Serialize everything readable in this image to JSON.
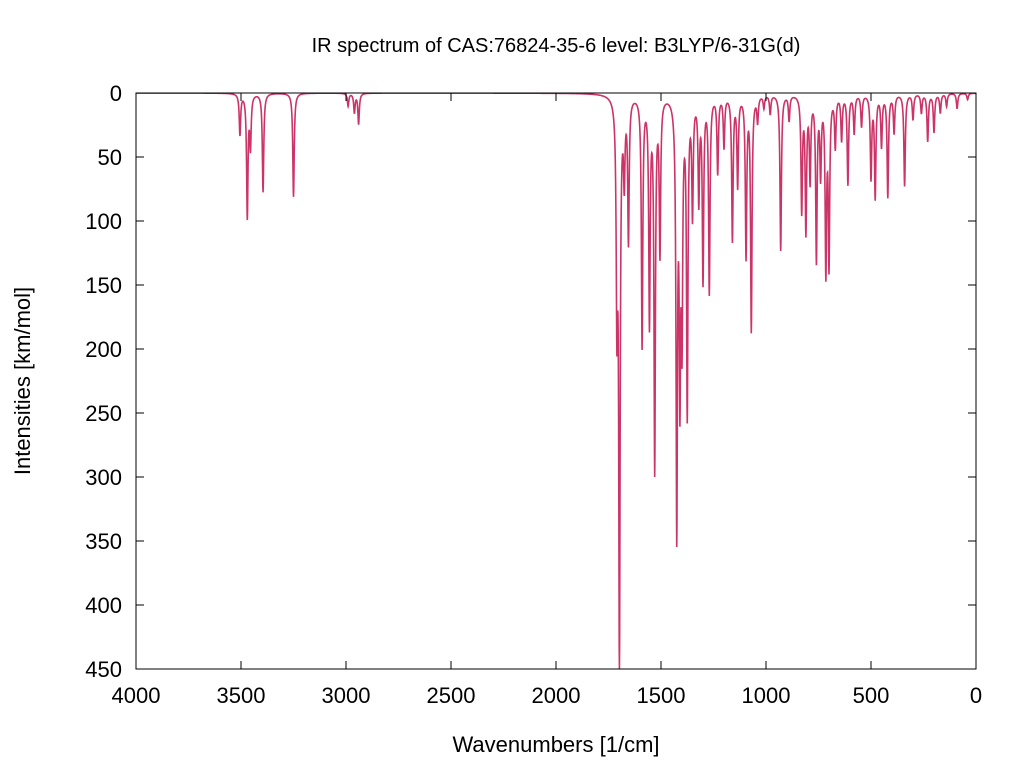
{
  "chart_data": {
    "type": "line",
    "title": "IR spectrum of CAS:76824-35-6   level: B3LYP/6-31G(d)",
    "xlabel": "Wavenumbers [1/cm]",
    "ylabel": "Intensities [km/mol]",
    "xlim": [
      4000,
      0
    ],
    "ylim": [
      0,
      450
    ],
    "y_inverted": true,
    "x_ticks": [
      4000,
      3500,
      3000,
      2500,
      2000,
      1500,
      1000,
      500,
      0
    ],
    "y_ticks": [
      0,
      50,
      100,
      150,
      200,
      250,
      300,
      350,
      400,
      450
    ],
    "grid": false,
    "legend": "none",
    "series": [
      {
        "color": "#cc3366",
        "peaks": [
          {
            "x": 3505,
            "y": 32
          },
          {
            "x": 3470,
            "y": 96
          },
          {
            "x": 3455,
            "y": 40
          },
          {
            "x": 3395,
            "y": 77
          },
          {
            "x": 3250,
            "y": 81
          },
          {
            "x": 2990,
            "y": 10
          },
          {
            "x": 2960,
            "y": 15
          },
          {
            "x": 2940,
            "y": 24
          },
          {
            "x": 1710,
            "y": 160
          },
          {
            "x": 1698,
            "y": 437
          },
          {
            "x": 1675,
            "y": 60
          },
          {
            "x": 1655,
            "y": 112
          },
          {
            "x": 1590,
            "y": 195
          },
          {
            "x": 1555,
            "y": 175
          },
          {
            "x": 1530,
            "y": 290
          },
          {
            "x": 1505,
            "y": 120
          },
          {
            "x": 1425,
            "y": 333
          },
          {
            "x": 1410,
            "y": 210
          },
          {
            "x": 1400,
            "y": 170
          },
          {
            "x": 1375,
            "y": 245
          },
          {
            "x": 1350,
            "y": 90
          },
          {
            "x": 1320,
            "y": 80
          },
          {
            "x": 1300,
            "y": 143
          },
          {
            "x": 1270,
            "y": 153
          },
          {
            "x": 1230,
            "y": 60
          },
          {
            "x": 1200,
            "y": 40
          },
          {
            "x": 1160,
            "y": 113
          },
          {
            "x": 1135,
            "y": 70
          },
          {
            "x": 1095,
            "y": 125
          },
          {
            "x": 1070,
            "y": 183
          },
          {
            "x": 1040,
            "y": 20
          },
          {
            "x": 1010,
            "y": 10
          },
          {
            "x": 980,
            "y": 15
          },
          {
            "x": 930,
            "y": 122
          },
          {
            "x": 890,
            "y": 20
          },
          {
            "x": 830,
            "y": 90
          },
          {
            "x": 810,
            "y": 105
          },
          {
            "x": 790,
            "y": 65
          },
          {
            "x": 760,
            "y": 128
          },
          {
            "x": 740,
            "y": 60
          },
          {
            "x": 715,
            "y": 135
          },
          {
            "x": 700,
            "y": 130
          },
          {
            "x": 670,
            "y": 40
          },
          {
            "x": 640,
            "y": 35
          },
          {
            "x": 610,
            "y": 70
          },
          {
            "x": 580,
            "y": 30
          },
          {
            "x": 545,
            "y": 25
          },
          {
            "x": 500,
            "y": 65
          },
          {
            "x": 480,
            "y": 80
          },
          {
            "x": 450,
            "y": 40
          },
          {
            "x": 420,
            "y": 80
          },
          {
            "x": 390,
            "y": 30
          },
          {
            "x": 340,
            "y": 72
          },
          {
            "x": 300,
            "y": 20
          },
          {
            "x": 260,
            "y": 15
          },
          {
            "x": 230,
            "y": 37
          },
          {
            "x": 200,
            "y": 30
          },
          {
            "x": 170,
            "y": 15
          },
          {
            "x": 140,
            "y": 10
          },
          {
            "x": 90,
            "y": 12
          },
          {
            "x": 40,
            "y": 5
          }
        ]
      }
    ]
  }
}
